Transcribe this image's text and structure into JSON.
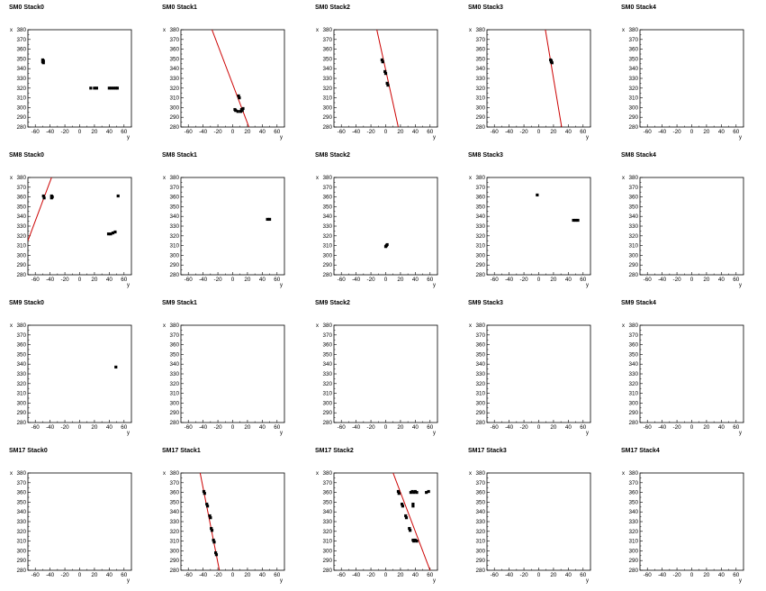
{
  "window": {
    "title": ""
  },
  "axes": {
    "xlabel": "y",
    "ylabel": "x",
    "xlim": [
      -70,
      70
    ],
    "ylim": [
      280,
      380
    ],
    "xticks": [
      "-60",
      "-40",
      "-20",
      "0",
      "20",
      "40",
      "60"
    ],
    "yticks": [
      "280",
      "290",
      "300",
      "310",
      "320",
      "330",
      "340",
      "350",
      "360",
      "370",
      "380"
    ]
  },
  "colors": {
    "hits": "#000000",
    "track": "#cc0000",
    "frame": "#000000"
  },
  "chart_data": [
    {
      "type": "scatter",
      "title": "SM0 Stack0",
      "grid": false,
      "points": [
        [
          -50,
          349
        ],
        [
          -49,
          348
        ],
        [
          -50,
          347
        ],
        [
          -49,
          346
        ],
        [
          15,
          320
        ],
        [
          20,
          320
        ],
        [
          23,
          320
        ],
        [
          40,
          320
        ],
        [
          43,
          320
        ],
        [
          46,
          320
        ],
        [
          49,
          320
        ],
        [
          51,
          320
        ]
      ],
      "tracks": []
    },
    {
      "type": "scatter",
      "title": "SM0 Stack1",
      "grid": false,
      "points": [
        [
          8,
          312
        ],
        [
          9,
          310
        ],
        [
          3,
          298
        ],
        [
          4,
          297
        ],
        [
          7,
          296
        ],
        [
          11,
          296
        ],
        [
          12,
          298
        ],
        [
          13,
          297
        ],
        [
          14,
          299
        ]
      ],
      "tracks": [
        {
          "from": [
            -28,
            380
          ],
          "to": [
            22,
            280
          ]
        }
      ]
    },
    {
      "type": "scatter",
      "title": "SM0 Stack2",
      "grid": false,
      "points": [
        [
          -5,
          349
        ],
        [
          -4,
          347
        ],
        [
          -1,
          337
        ],
        [
          0,
          335
        ],
        [
          2,
          325
        ],
        [
          3,
          323
        ]
      ],
      "tracks": [
        {
          "from": [
            -12,
            380
          ],
          "to": [
            17,
            280
          ]
        }
      ]
    },
    {
      "type": "scatter",
      "title": "SM0 Stack3",
      "grid": false,
      "points": [
        [
          16,
          349
        ],
        [
          17,
          348
        ],
        [
          17,
          347
        ],
        [
          18,
          346
        ]
      ],
      "tracks": [
        {
          "from": [
            9,
            380
          ],
          "to": [
            31,
            280
          ]
        }
      ]
    },
    {
      "type": "scatter",
      "title": "SM0 Stack4",
      "grid": false,
      "points": [],
      "tracks": []
    },
    {
      "type": "scatter",
      "title": "SM8 Stack0",
      "grid": false,
      "points": [
        [
          -49,
          361
        ],
        [
          -48,
          359
        ],
        [
          -38,
          361
        ],
        [
          -37,
          360
        ],
        [
          -38,
          359
        ],
        [
          52,
          361
        ],
        [
          39,
          322
        ],
        [
          42,
          322
        ],
        [
          45,
          323
        ],
        [
          48,
          324
        ]
      ],
      "tracks": [
        {
          "from": [
            -38,
            380
          ],
          "to": [
            -70,
            315
          ]
        }
      ]
    },
    {
      "type": "scatter",
      "title": "SM8 Stack1",
      "grid": false,
      "points": [
        [
          47,
          337
        ],
        [
          50,
          337
        ]
      ],
      "tracks": []
    },
    {
      "type": "scatter",
      "title": "SM8 Stack2",
      "grid": false,
      "points": [
        [
          0,
          309
        ],
        [
          1,
          310
        ],
        [
          2,
          311
        ]
      ],
      "tracks": []
    },
    {
      "type": "scatter",
      "title": "SM8 Stack3",
      "grid": false,
      "points": [
        [
          -2,
          362
        ],
        [
          47,
          336
        ],
        [
          50,
          336
        ],
        [
          53,
          336
        ]
      ],
      "tracks": []
    },
    {
      "type": "scatter",
      "title": "SM8 Stack4",
      "grid": false,
      "points": [],
      "tracks": []
    },
    {
      "type": "scatter",
      "title": "SM9 Stack0",
      "grid": false,
      "points": [
        [
          49,
          337
        ]
      ],
      "tracks": []
    },
    {
      "type": "scatter",
      "title": "SM9 Stack1",
      "grid": false,
      "points": [],
      "tracks": []
    },
    {
      "type": "scatter",
      "title": "SM9 Stack2",
      "grid": false,
      "points": [],
      "tracks": []
    },
    {
      "type": "scatter",
      "title": "SM9 Stack3",
      "grid": false,
      "points": [],
      "tracks": []
    },
    {
      "type": "scatter",
      "title": "SM9 Stack4",
      "grid": false,
      "points": [],
      "tracks": []
    },
    {
      "type": "scatter",
      "title": "SM17 Stack0",
      "grid": false,
      "points": [],
      "tracks": []
    },
    {
      "type": "scatter",
      "title": "SM17 Stack1",
      "grid": false,
      "points": [
        [
          -39,
          361
        ],
        [
          -38,
          359
        ],
        [
          -35,
          348
        ],
        [
          -34,
          346
        ],
        [
          -31,
          336
        ],
        [
          -30,
          334
        ],
        [
          -29,
          323
        ],
        [
          -28,
          321
        ],
        [
          -26,
          311
        ],
        [
          -25,
          309
        ],
        [
          -23,
          298
        ],
        [
          -22,
          296
        ]
      ],
      "tracks": [
        {
          "from": [
            -44,
            380
          ],
          "to": [
            -18,
            280
          ]
        }
      ]
    },
    {
      "type": "scatter",
      "title": "SM17 Stack2",
      "grid": false,
      "points": [
        [
          17,
          361
        ],
        [
          18,
          359
        ],
        [
          22,
          348
        ],
        [
          23,
          346
        ],
        [
          27,
          336
        ],
        [
          28,
          334
        ],
        [
          32,
          323
        ],
        [
          33,
          321
        ],
        [
          37,
          311
        ],
        [
          38,
          310
        ],
        [
          40,
          311
        ],
        [
          42,
          310
        ],
        [
          34,
          360
        ],
        [
          36,
          361
        ],
        [
          38,
          360
        ],
        [
          40,
          361
        ],
        [
          42,
          360
        ],
        [
          37,
          348
        ],
        [
          37,
          346
        ],
        [
          55,
          360
        ],
        [
          58,
          361
        ]
      ],
      "tracks": [
        {
          "from": [
            10,
            380
          ],
          "to": [
            60,
            280
          ]
        }
      ]
    },
    {
      "type": "scatter",
      "title": "SM17 Stack3",
      "grid": false,
      "points": [],
      "tracks": []
    },
    {
      "type": "scatter",
      "title": "SM17 Stack4",
      "grid": false,
      "points": [],
      "tracks": []
    }
  ]
}
